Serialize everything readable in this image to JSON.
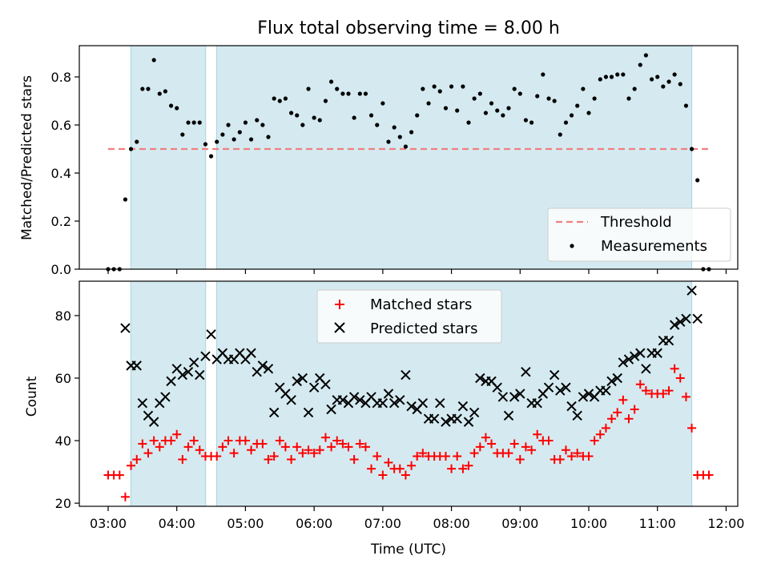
{
  "figure": {
    "title": "Flux total observing time = 8.00 h"
  },
  "chart_data": [
    {
      "type": "scatter",
      "title": "Flux total observing time = 8.00 h",
      "xlabel": "",
      "ylabel": "Matched/Predicted stars",
      "xlim": [
        2.58,
        12.17
      ],
      "ylim": [
        0.0,
        0.93
      ],
      "yticks": [
        0.0,
        0.2,
        0.4,
        0.6,
        0.8
      ],
      "ytick_labels": [
        "0.0",
        "0.2",
        "0.4",
        "0.6",
        "0.8"
      ],
      "shaded_intervals": [
        [
          3.33,
          4.42
        ],
        [
          4.58,
          11.5
        ]
      ],
      "shade_color": "#d4eaf0",
      "threshold": {
        "name": "Threshold",
        "value": 0.5,
        "x_range": [
          3.0,
          11.75
        ],
        "color": "#f08080"
      },
      "series": [
        {
          "name": "Measurements",
          "color": "#000000",
          "x": [
            3.0,
            3.083,
            3.167,
            3.25,
            3.333,
            3.417,
            3.5,
            3.583,
            3.667,
            3.75,
            3.833,
            3.917,
            4.0,
            4.083,
            4.167,
            4.25,
            4.333,
            4.417,
            4.5,
            4.583,
            4.667,
            4.75,
            4.833,
            4.917,
            5.0,
            5.083,
            5.167,
            5.25,
            5.333,
            5.417,
            5.5,
            5.583,
            5.667,
            5.75,
            5.833,
            5.917,
            6.0,
            6.083,
            6.167,
            6.25,
            6.333,
            6.417,
            6.5,
            6.583,
            6.667,
            6.75,
            6.833,
            6.917,
            7.0,
            7.083,
            7.167,
            7.25,
            7.333,
            7.417,
            7.5,
            7.583,
            7.667,
            7.75,
            7.833,
            7.917,
            8.0,
            8.083,
            8.167,
            8.25,
            8.333,
            8.417,
            8.5,
            8.583,
            8.667,
            8.75,
            8.833,
            8.917,
            9.0,
            9.083,
            9.167,
            9.25,
            9.333,
            9.417,
            9.5,
            9.583,
            9.667,
            9.75,
            9.833,
            9.917,
            10.0,
            10.083,
            10.167,
            10.25,
            10.333,
            10.417,
            10.5,
            10.583,
            10.667,
            10.75,
            10.833,
            10.917,
            11.0,
            11.083,
            11.167,
            11.25,
            11.333,
            11.417,
            11.5,
            11.583,
            11.667,
            11.75
          ],
          "y": [
            0.0,
            0.0,
            0.0,
            0.29,
            0.5,
            0.53,
            0.75,
            0.75,
            0.87,
            0.73,
            0.74,
            0.68,
            0.67,
            0.56,
            0.61,
            0.61,
            0.61,
            0.52,
            0.47,
            0.53,
            0.56,
            0.6,
            0.54,
            0.57,
            0.61,
            0.54,
            0.62,
            0.6,
            0.55,
            0.71,
            0.7,
            0.71,
            0.65,
            0.64,
            0.6,
            0.75,
            0.63,
            0.62,
            0.7,
            0.78,
            0.75,
            0.73,
            0.73,
            0.63,
            0.73,
            0.73,
            0.64,
            0.6,
            0.69,
            0.53,
            0.59,
            0.55,
            0.51,
            0.57,
            0.64,
            0.75,
            0.69,
            0.76,
            0.74,
            0.67,
            0.76,
            0.66,
            0.76,
            0.61,
            0.71,
            0.73,
            0.65,
            0.69,
            0.66,
            0.64,
            0.67,
            0.75,
            0.73,
            0.62,
            0.61,
            0.72,
            0.81,
            0.71,
            0.7,
            0.56,
            0.61,
            0.64,
            0.68,
            0.75,
            0.65,
            0.71,
            0.79,
            0.8,
            0.8,
            0.81,
            0.81,
            0.71,
            0.75,
            0.85,
            0.89,
            0.79,
            0.8,
            0.76,
            0.78,
            0.81,
            0.77,
            0.68,
            0.5,
            0.37,
            0.0,
            0.0
          ]
        }
      ],
      "legend": {
        "placement": "lower-right",
        "entries": [
          "Threshold",
          "Measurements"
        ]
      }
    },
    {
      "type": "scatter",
      "title": "",
      "xlabel": "Time (UTC)",
      "ylabel": "Count",
      "xlim": [
        2.58,
        12.17
      ],
      "ylim": [
        19.0,
        91.0
      ],
      "yticks": [
        20,
        40,
        60,
        80
      ],
      "ytick_labels": [
        "20",
        "40",
        "60",
        "80"
      ],
      "xticks": [
        3,
        4,
        5,
        6,
        7,
        8,
        9,
        10,
        11,
        12
      ],
      "xtick_labels": [
        "03:00",
        "04:00",
        "05:00",
        "06:00",
        "07:00",
        "08:00",
        "09:00",
        "10:00",
        "11:00",
        "12:00"
      ],
      "shaded_intervals": [
        [
          3.33,
          4.42
        ],
        [
          4.58,
          11.5
        ]
      ],
      "shade_color": "#d4eaf0",
      "series": [
        {
          "name": "Matched stars",
          "marker": "plus",
          "color": "#ff0000",
          "x": [
            3.0,
            3.083,
            3.167,
            3.25,
            3.333,
            3.417,
            3.5,
            3.583,
            3.667,
            3.75,
            3.833,
            3.917,
            4.0,
            4.083,
            4.167,
            4.25,
            4.333,
            4.417,
            4.5,
            4.583,
            4.667,
            4.75,
            4.833,
            4.917,
            5.0,
            5.083,
            5.167,
            5.25,
            5.333,
            5.417,
            5.5,
            5.583,
            5.667,
            5.75,
            5.833,
            5.917,
            6.0,
            6.083,
            6.167,
            6.25,
            6.333,
            6.417,
            6.5,
            6.583,
            6.667,
            6.75,
            6.833,
            6.917,
            7.0,
            7.083,
            7.167,
            7.25,
            7.333,
            7.417,
            7.5,
            7.583,
            7.667,
            7.75,
            7.833,
            7.917,
            8.0,
            8.083,
            8.167,
            8.25,
            8.333,
            8.417,
            8.5,
            8.583,
            8.667,
            8.75,
            8.833,
            8.917,
            9.0,
            9.083,
            9.167,
            9.25,
            9.333,
            9.417,
            9.5,
            9.583,
            9.667,
            9.75,
            9.833,
            9.917,
            10.0,
            10.083,
            10.167,
            10.25,
            10.333,
            10.417,
            10.5,
            10.583,
            10.667,
            10.75,
            10.833,
            10.917,
            11.0,
            11.083,
            11.167,
            11.25,
            11.333,
            11.417,
            11.5,
            11.583,
            11.667,
            11.75
          ],
          "y": [
            29,
            29,
            29,
            22,
            32,
            34,
            39,
            36,
            40,
            38,
            40,
            40,
            42,
            34,
            38,
            40,
            37,
            35,
            35,
            35,
            38,
            40,
            36,
            40,
            40,
            37,
            39,
            39,
            34,
            35,
            40,
            38,
            34,
            38,
            36,
            37,
            36,
            37,
            41,
            38,
            40,
            39,
            38,
            34,
            39,
            38,
            31,
            35,
            29,
            33,
            31,
            31,
            29,
            32,
            35,
            36,
            35,
            35,
            35,
            35,
            31,
            35,
            31,
            32,
            36,
            38,
            41,
            39,
            36,
            36,
            36,
            39,
            34,
            38,
            37,
            42,
            40,
            40,
            34,
            34,
            37,
            35,
            36,
            35,
            35,
            40,
            42,
            44,
            47,
            49,
            53,
            47,
            50,
            58,
            56,
            55,
            55,
            55,
            56,
            63,
            60,
            54,
            44,
            29,
            29,
            29
          ]
        },
        {
          "name": "Predicted stars",
          "marker": "x",
          "color": "#000000",
          "x": [
            3.25,
            3.333,
            3.417,
            3.5,
            3.583,
            3.667,
            3.75,
            3.833,
            3.917,
            4.0,
            4.083,
            4.167,
            4.25,
            4.333,
            4.417,
            4.5,
            4.583,
            4.667,
            4.75,
            4.833,
            4.917,
            5.0,
            5.083,
            5.167,
            5.25,
            5.333,
            5.417,
            5.5,
            5.583,
            5.667,
            5.75,
            5.833,
            5.917,
            6.0,
            6.083,
            6.167,
            6.25,
            6.333,
            6.417,
            6.5,
            6.583,
            6.667,
            6.75,
            6.833,
            6.917,
            7.0,
            7.083,
            7.167,
            7.25,
            7.333,
            7.417,
            7.5,
            7.583,
            7.667,
            7.75,
            7.833,
            7.917,
            8.0,
            8.083,
            8.167,
            8.25,
            8.333,
            8.417,
            8.5,
            8.583,
            8.667,
            8.75,
            8.833,
            8.917,
            9.0,
            9.083,
            9.167,
            9.25,
            9.333,
            9.417,
            9.5,
            9.583,
            9.667,
            9.75,
            9.833,
            9.917,
            10.0,
            10.083,
            10.167,
            10.25,
            10.333,
            10.417,
            10.5,
            10.583,
            10.667,
            10.75,
            10.833,
            10.917,
            11.0,
            11.083,
            11.167,
            11.25,
            11.333,
            11.417,
            11.5,
            11.583
          ],
          "y": [
            76,
            64,
            64,
            52,
            48,
            46,
            52,
            54,
            59,
            63,
            61,
            62,
            65,
            61,
            67,
            74,
            66,
            68,
            66,
            66,
            68,
            66,
            68,
            62,
            64,
            63,
            49,
            57,
            55,
            53,
            59,
            60,
            49,
            57,
            60,
            58,
            50,
            53,
            53,
            52,
            54,
            53,
            52,
            54,
            52,
            52,
            55,
            52,
            53,
            61,
            51,
            50,
            52,
            47,
            47,
            52,
            46,
            47,
            47,
            51,
            46,
            49,
            60,
            59,
            59,
            57,
            54,
            48,
            54,
            55,
            62,
            52,
            52,
            55,
            57,
            61,
            56,
            57,
            51,
            48,
            54,
            55,
            54,
            56,
            56,
            59,
            60,
            65,
            66,
            67,
            68,
            63,
            68,
            68,
            72,
            72,
            77,
            78,
            79,
            88,
            79
          ]
        }
      ],
      "legend": {
        "placement": "upper-center",
        "entries": [
          "Matched stars",
          "Predicted stars"
        ]
      }
    }
  ]
}
